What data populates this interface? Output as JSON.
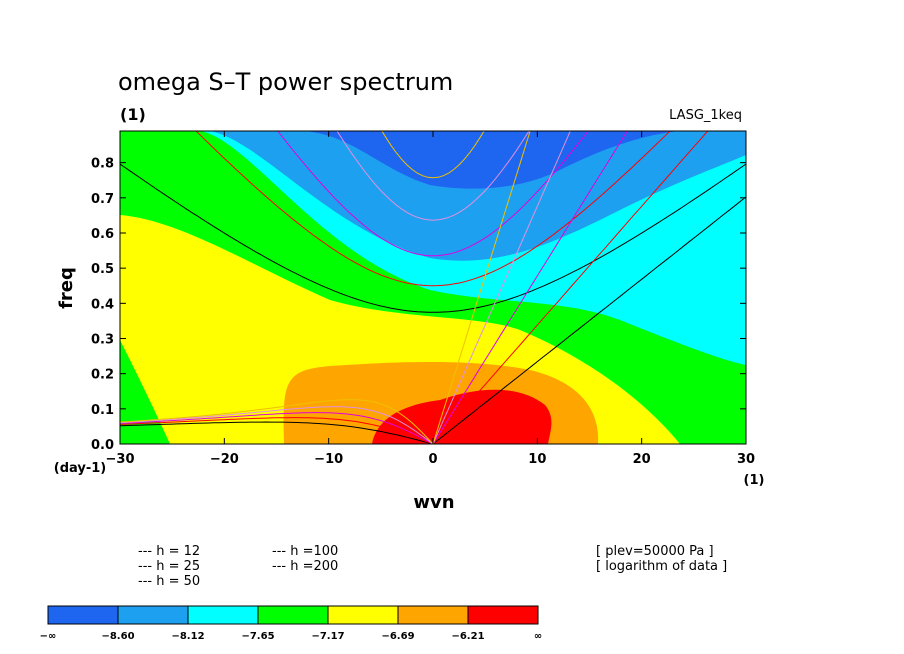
{
  "chart_data": {
    "type": "heatmap",
    "title": "omega S–T power spectrum",
    "subtitle": "(1)",
    "label_top_right": "LASG_1keq",
    "xlabel": "wvn",
    "ylabel": "freq",
    "x_unit_label": "(1)",
    "y_unit_label": "(day-1)",
    "xlim": [
      -30,
      30
    ],
    "ylim": [
      0,
      0.89
    ],
    "x_ticks": [
      -30,
      -20,
      -10,
      0,
      10,
      20,
      30
    ],
    "y_ticks": [
      0.0,
      0.1,
      0.2,
      0.3,
      0.4,
      0.5,
      0.6,
      0.7,
      0.8
    ],
    "x_tick_labels": [
      "−30",
      "−20",
      "−10",
      "0",
      "10",
      "20",
      "30"
    ],
    "y_tick_labels": [
      "0.0",
      "0.1",
      "0.2",
      "0.3",
      "0.4",
      "0.5",
      "0.6",
      "0.7",
      "0.8"
    ],
    "contour_levels": [
      -8.6,
      -8.12,
      -7.65,
      -7.17,
      -6.69,
      -6.21
    ],
    "colorbar_labels": [
      "−∞",
      "−8.60",
      "−8.12",
      "−7.65",
      "−7.17",
      "−6.69",
      "−6.21",
      "∞"
    ],
    "colorbar_colors": [
      "#1e66f0",
      "#1ea0f0",
      "#00ffff",
      "#00ff00",
      "#ffff00",
      "#ffa500",
      "#ff0000"
    ],
    "equivalent_depths": [
      {
        "h": 12,
        "color": "#000000"
      },
      {
        "h": 25,
        "color": "#ff0000"
      },
      {
        "h": 50,
        "color": "#e000e0"
      },
      {
        "h": 100,
        "color": "#e090e0"
      },
      {
        "h": 200,
        "color": "#f0c000"
      }
    ],
    "annotations": [
      "[ plev=50000 Pa ]",
      "[ logarithm of data ]"
    ]
  },
  "legend": {
    "h12": "--- h = 12",
    "h25": "--- h = 25",
    "h50": "--- h = 50",
    "h100": "--- h =100",
    "h200": "--- h =200"
  },
  "colors": {
    "h12": "#000000",
    "h25": "#ff0000",
    "h50": "#e000e0",
    "h100": "#e090e0",
    "h200": "#f0c000"
  }
}
